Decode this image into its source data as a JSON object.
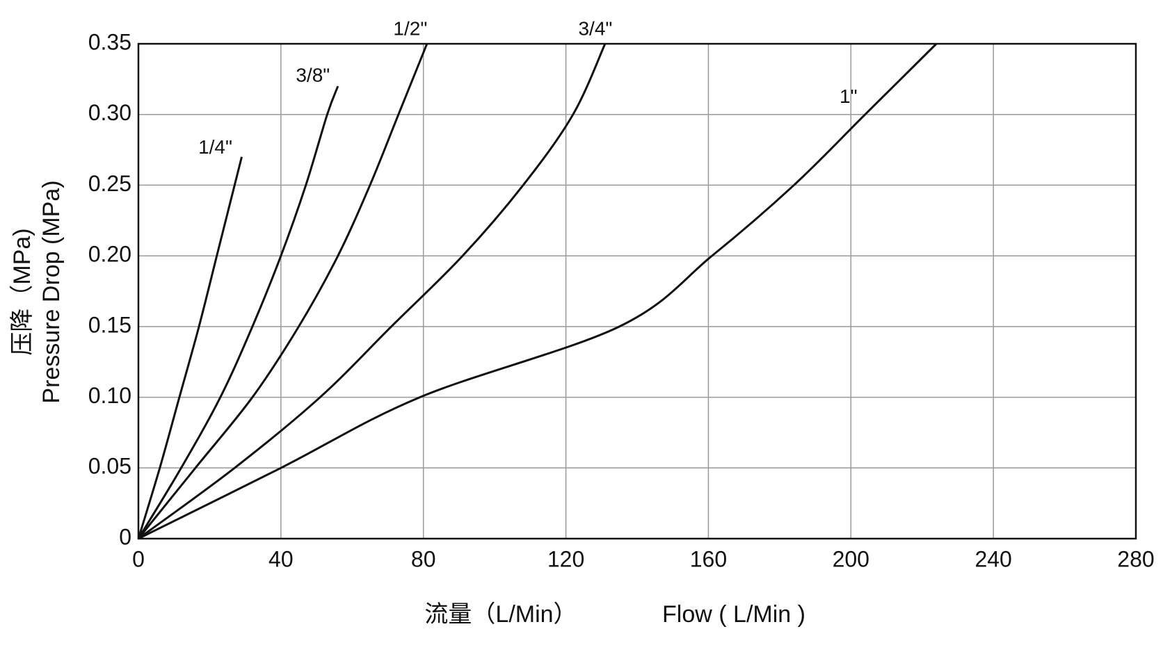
{
  "chart_data": {
    "type": "line",
    "y_label": [
      "压降（MPa)",
      "Pressure Drop (MPa)"
    ],
    "x_label": [
      "流量（L/Min）",
      "Flow ( L/Min )"
    ],
    "xlim": [
      0,
      280
    ],
    "xticks": [
      0,
      40,
      80,
      120,
      160,
      200,
      240,
      280
    ],
    "ylim": [
      0,
      0.35
    ],
    "yticks": [
      0,
      0.05,
      {
        "value": 0.1,
        "label": "0.10"
      },
      0.15,
      {
        "value": 0.2,
        "label": "0.20"
      },
      0.25,
      {
        "value": 0.3,
        "label": "0.30"
      },
      0.35
    ],
    "grid": true,
    "series": [
      {
        "name": "1/4\"",
        "color": "#111111",
        "x": [
          0,
          6,
          11.5,
          17,
          22,
          26,
          29
        ],
        "values": [
          0,
          0.05,
          0.1,
          0.15,
          0.2,
          0.24,
          0.27
        ]
      },
      {
        "name": "3/8\"",
        "color": "#111111",
        "x": [
          0,
          12,
          23,
          32,
          40,
          47,
          53,
          56
        ],
        "values": [
          0,
          0.05,
          0.1,
          0.15,
          0.2,
          0.25,
          0.3,
          0.32
        ]
      },
      {
        "name": "1/2\"",
        "color": "#111111",
        "x": [
          0,
          16,
          32,
          45,
          56,
          65,
          73,
          81
        ],
        "values": [
          0,
          0.05,
          0.1,
          0.15,
          0.2,
          0.25,
          0.3,
          0.35
        ]
      },
      {
        "name": "3/4\"",
        "color": "#111111",
        "x": [
          0,
          27,
          51,
          71,
          91,
          108,
          122,
          131
        ],
        "values": [
          0,
          0.05,
          0.1,
          0.15,
          0.2,
          0.25,
          0.3,
          0.35
        ]
      },
      {
        "name": "1\"",
        "color": "#111111",
        "x": [
          0,
          40,
          79,
          135,
          161,
          184,
          204,
          224
        ],
        "values": [
          0,
          0.05,
          0.1,
          0.15,
          0.2,
          0.25,
          0.3,
          0.35
        ]
      }
    ]
  }
}
